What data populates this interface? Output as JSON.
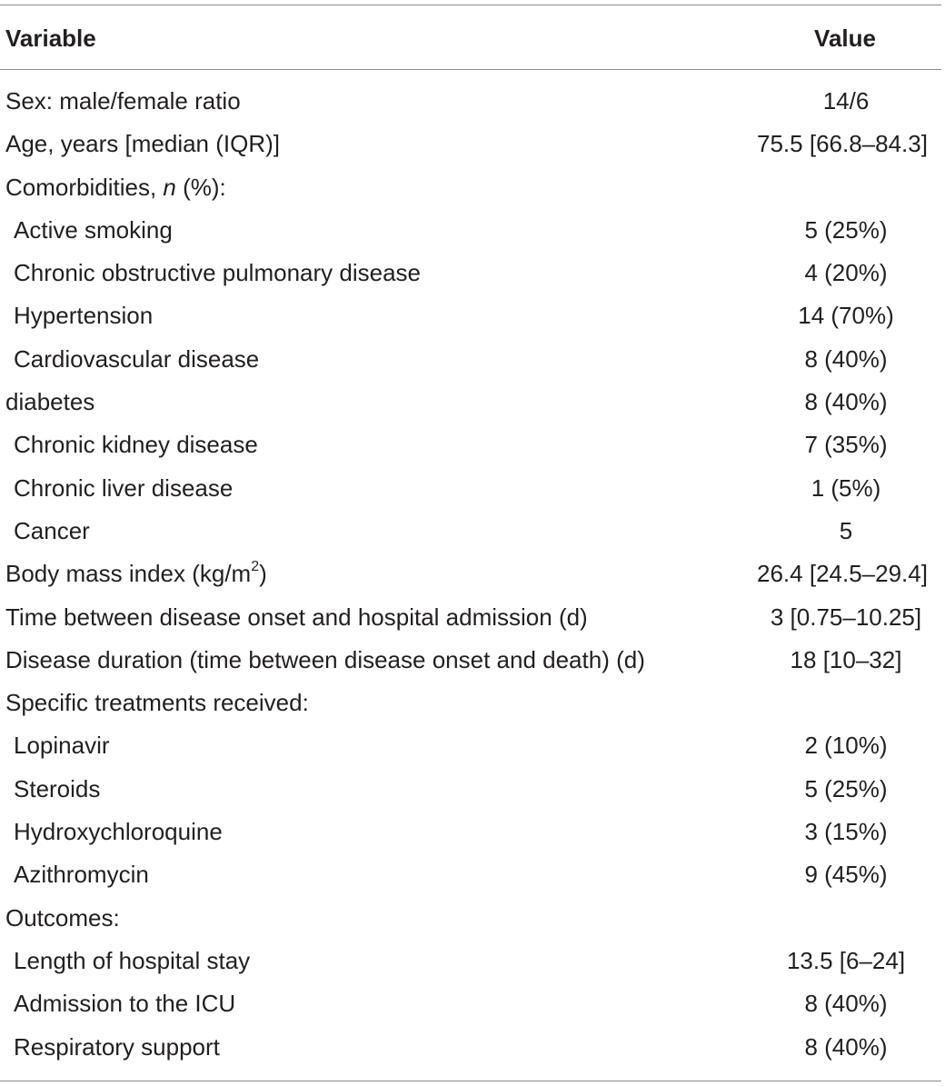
{
  "header": {
    "variable": "Variable",
    "value": "Value"
  },
  "rows": [
    {
      "variable": "Sex: male/female ratio",
      "value": "14/6",
      "indent": false
    },
    {
      "variable": "Age, years [median (IQR)]",
      "value": "75.5 [66.8–84.3]",
      "indent": false
    },
    {
      "variable_pre": "Comorbidities, ",
      "variable_italic": "n",
      "variable_post": " (%):",
      "value": "",
      "indent": false
    },
    {
      "variable": "Active smoking",
      "value": "5 (25%)",
      "indent": true
    },
    {
      "variable": "Chronic obstructive pulmonary disease",
      "value": "4 (20%)",
      "indent": true
    },
    {
      "variable": "Hypertension",
      "value": "14 (70%)",
      "indent": true
    },
    {
      "variable": "Cardiovascular disease",
      "value": "8 (40%)",
      "indent": true
    },
    {
      "variable": "diabetes",
      "value": "8 (40%)",
      "indent": false
    },
    {
      "variable": "Chronic kidney disease",
      "value": "7 (35%)",
      "indent": true
    },
    {
      "variable": "Chronic liver disease",
      "value": "1 (5%)",
      "indent": true
    },
    {
      "variable": "Cancer",
      "value": "5",
      "indent": true
    },
    {
      "variable_pre": "Body mass index (kg/m",
      "variable_sup": "2",
      "variable_post": ")",
      "value": "26.4 [24.5–29.4]",
      "indent": false
    },
    {
      "variable": "Time between disease onset and hospital admission (d)",
      "value": "3 [0.75–10.25]",
      "indent": false
    },
    {
      "variable": "Disease duration (time between disease onset and death) (d)",
      "value": "18 [10–32]",
      "indent": false
    },
    {
      "variable": "Specific treatments received:",
      "value": "",
      "indent": false
    },
    {
      "variable": "Lopinavir",
      "value": "2 (10%)",
      "indent": true
    },
    {
      "variable": "Steroids",
      "value": "5 (25%)",
      "indent": true
    },
    {
      "variable": "Hydroxychloroquine",
      "value": "3 (15%)",
      "indent": true
    },
    {
      "variable": "Azithromycin",
      "value": "9 (45%)",
      "indent": true
    },
    {
      "variable": "Outcomes:",
      "value": "",
      "indent": false
    },
    {
      "variable": "Length of hospital stay",
      "value": "13.5 [6–24]",
      "indent": true
    },
    {
      "variable": "Admission to the ICU",
      "value": "8 (40%)",
      "indent": true
    },
    {
      "variable": "Respiratory support",
      "value": "8 (40%)",
      "indent": true
    }
  ]
}
